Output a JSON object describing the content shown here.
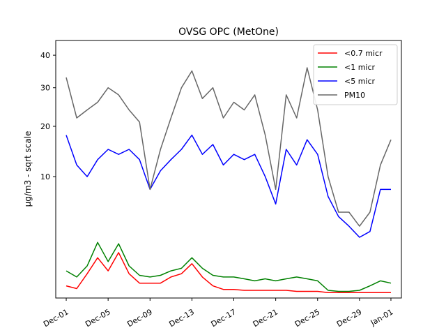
{
  "chart_data": {
    "type": "line",
    "title": "OVSG OPC (MetOne)",
    "xlabel": "",
    "ylabel": "µg/m3 - sqrt scale",
    "y_scale": "sqrt",
    "ylim": [
      0,
      45
    ],
    "xlim": [
      "2023-11-30",
      "2024-01-02"
    ],
    "grid": false,
    "legend_position": "top-right",
    "x_ticks": [
      "Dec-01",
      "Dec-05",
      "Dec-09",
      "Dec-13",
      "Dec-17",
      "Dec-21",
      "Dec-25",
      "Dec-29",
      "Jan-01"
    ],
    "x_tick_dates": [
      "2023-12-01",
      "2023-12-05",
      "2023-12-09",
      "2023-12-13",
      "2023-12-17",
      "2023-12-21",
      "2023-12-25",
      "2023-12-29",
      "2024-01-01"
    ],
    "y_ticks": [
      10,
      20,
      30,
      40
    ],
    "x": [
      "2023-12-01",
      "2023-12-02",
      "2023-12-03",
      "2023-12-04",
      "2023-12-05",
      "2023-12-06",
      "2023-12-07",
      "2023-12-08",
      "2023-12-09",
      "2023-12-10",
      "2023-12-11",
      "2023-12-12",
      "2023-12-13",
      "2023-12-14",
      "2023-12-15",
      "2023-12-16",
      "2023-12-17",
      "2023-12-18",
      "2023-12-19",
      "2023-12-20",
      "2023-12-21",
      "2023-12-22",
      "2023-12-23",
      "2023-12-24",
      "2023-12-25",
      "2023-12-26",
      "2023-12-27",
      "2023-12-28",
      "2023-12-29",
      "2023-12-30",
      "2023-12-31",
      "2024-01-01"
    ],
    "series": [
      {
        "name": "<0.7 micr",
        "color": "#ff0000",
        "values": [
          0.1,
          0.06,
          0.4,
          1.1,
          0.5,
          1.4,
          0.4,
          0.15,
          0.15,
          0.15,
          0.3,
          0.4,
          0.8,
          0.3,
          0.1,
          0.05,
          0.05,
          0.04,
          0.04,
          0.04,
          0.04,
          0.04,
          0.03,
          0.03,
          0.03,
          0.02,
          0.02,
          0.02,
          0.02,
          0.02,
          0.02,
          0.02
        ]
      },
      {
        "name": "<1 micr",
        "color": "#008000",
        "values": [
          0.5,
          0.3,
          0.7,
          2.1,
          0.9,
          2.0,
          0.7,
          0.35,
          0.3,
          0.35,
          0.5,
          0.6,
          1.1,
          0.6,
          0.35,
          0.3,
          0.3,
          0.25,
          0.2,
          0.25,
          0.2,
          0.25,
          0.3,
          0.25,
          0.2,
          0.04,
          0.03,
          0.03,
          0.04,
          0.1,
          0.2,
          0.15
        ]
      },
      {
        "name": "<5 micr",
        "color": "#0000ff",
        "values": [
          18,
          12,
          10,
          13,
          15,
          14,
          15,
          13,
          8,
          11,
          13,
          15,
          18,
          14,
          16,
          12,
          14,
          13,
          14,
          10,
          6,
          15,
          12,
          17,
          14,
          7,
          4.5,
          3.5,
          2.5,
          3,
          8,
          8
        ]
      },
      {
        "name": "PM10",
        "color": "#666666",
        "values": [
          33,
          22,
          24,
          26,
          30,
          28,
          24,
          21,
          8,
          15,
          22,
          30,
          35,
          27,
          30,
          22,
          26,
          24,
          28,
          18,
          8,
          28,
          22,
          36,
          24,
          10,
          5,
          5,
          3.5,
          5,
          12,
          17
        ]
      }
    ]
  }
}
